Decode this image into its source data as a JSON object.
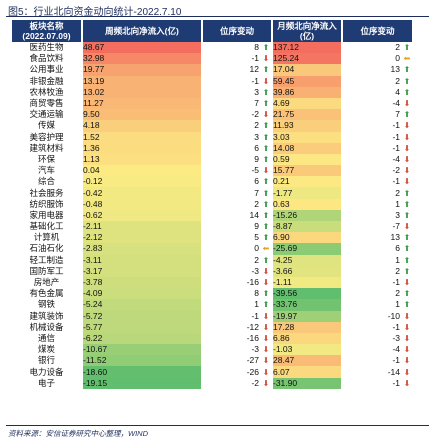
{
  "title": "图5：行业北向资金动向统计-2022.7.10",
  "headers": {
    "sector": "板块名称",
    "date": "(2022.07.09)",
    "weekly_flow": "周频北向净流入(亿)",
    "weekly_rank": "位序变动",
    "monthly_flow": "月频北向净流入(亿)",
    "monthly_rank": "位序变动"
  },
  "rows": [
    {
      "sector": "医药生物",
      "weekly": "48.67",
      "wrank": "8",
      "wdir": "up",
      "monthly": "137.12",
      "mrank": "2",
      "mdir": "up"
    },
    {
      "sector": "食品饮料",
      "weekly": "32.98",
      "wrank": "-1",
      "wdir": "down",
      "monthly": "125.24",
      "mrank": "0",
      "mdir": "flat"
    },
    {
      "sector": "公用事业",
      "weekly": "19.77",
      "wrank": "12",
      "wdir": "up",
      "monthly": "17.04",
      "mrank": "13",
      "mdir": "up"
    },
    {
      "sector": "非银金融",
      "weekly": "13.19",
      "wrank": "-1",
      "wdir": "down",
      "monthly": "59.45",
      "mrank": "2",
      "mdir": "up"
    },
    {
      "sector": "农林牧渔",
      "weekly": "13.02",
      "wrank": "3",
      "wdir": "up",
      "monthly": "39.86",
      "mrank": "4",
      "mdir": "up"
    },
    {
      "sector": "商贸零售",
      "weekly": "11.27",
      "wrank": "7",
      "wdir": "up",
      "monthly": "4.69",
      "mrank": "-4",
      "mdir": "down"
    },
    {
      "sector": "交通运输",
      "weekly": "9.50",
      "wrank": "-2",
      "wdir": "down",
      "monthly": "21.75",
      "mrank": "7",
      "mdir": "up"
    },
    {
      "sector": "传媒",
      "weekly": "4.18",
      "wrank": "2",
      "wdir": "up",
      "monthly": "11.93",
      "mrank": "-1",
      "mdir": "down"
    },
    {
      "sector": "美容护理",
      "weekly": "1.52",
      "wrank": "3",
      "wdir": "up",
      "monthly": "3.03",
      "mrank": "-1",
      "mdir": "down"
    },
    {
      "sector": "建筑材料",
      "weekly": "1.36",
      "wrank": "6",
      "wdir": "up",
      "monthly": "14.08",
      "mrank": "-1",
      "mdir": "down"
    },
    {
      "sector": "环保",
      "weekly": "1.13",
      "wrank": "9",
      "wdir": "up",
      "monthly": "0.59",
      "mrank": "-4",
      "mdir": "down"
    },
    {
      "sector": "汽车",
      "weekly": "0.04",
      "wrank": "-5",
      "wdir": "down",
      "monthly": "15.77",
      "mrank": "-2",
      "mdir": "down"
    },
    {
      "sector": "综合",
      "weekly": "-0.12",
      "wrank": "6",
      "wdir": "up",
      "monthly": "0.21",
      "mrank": "-1",
      "mdir": "down"
    },
    {
      "sector": "社会服务",
      "weekly": "-0.42",
      "wrank": "7",
      "wdir": "up",
      "monthly": "-1.77",
      "mrank": "2",
      "mdir": "up"
    },
    {
      "sector": "纺织服饰",
      "weekly": "-0.48",
      "wrank": "2",
      "wdir": "up",
      "monthly": "0.63",
      "mrank": "1",
      "mdir": "up"
    },
    {
      "sector": "家用电器",
      "weekly": "-0.62",
      "wrank": "14",
      "wdir": "up",
      "monthly": "-15.26",
      "mrank": "3",
      "mdir": "up"
    },
    {
      "sector": "基础化工",
      "weekly": "-2.11",
      "wrank": "9",
      "wdir": "up",
      "monthly": "-8.87",
      "mrank": "-7",
      "mdir": "down"
    },
    {
      "sector": "计算机",
      "weekly": "-2.12",
      "wrank": "5",
      "wdir": "up",
      "monthly": "6.90",
      "mrank": "13",
      "mdir": "up"
    },
    {
      "sector": "石油石化",
      "weekly": "-2.83",
      "wrank": "0",
      "wdir": "flat",
      "monthly": "-25.69",
      "mrank": "6",
      "mdir": "up"
    },
    {
      "sector": "轻工制造",
      "weekly": "-3.11",
      "wrank": "2",
      "wdir": "up",
      "monthly": "-4.25",
      "mrank": "1",
      "mdir": "up"
    },
    {
      "sector": "国防军工",
      "weekly": "-3.17",
      "wrank": "-3",
      "wdir": "down",
      "monthly": "-3.66",
      "mrank": "2",
      "mdir": "up"
    },
    {
      "sector": "房地产",
      "weekly": "-3.78",
      "wrank": "-16",
      "wdir": "down",
      "monthly": "-1.11",
      "mrank": "-1",
      "mdir": "down"
    },
    {
      "sector": "有色金属",
      "weekly": "-4.09",
      "wrank": "8",
      "wdir": "up",
      "monthly": "-39.56",
      "mrank": "2",
      "mdir": "up"
    },
    {
      "sector": "钢铁",
      "weekly": "-5.24",
      "wrank": "1",
      "wdir": "up",
      "monthly": "-33.76",
      "mrank": "1",
      "mdir": "up"
    },
    {
      "sector": "建筑装饰",
      "weekly": "-5.72",
      "wrank": "-1",
      "wdir": "down",
      "monthly": "-19.97",
      "mrank": "-10",
      "mdir": "down"
    },
    {
      "sector": "机械设备",
      "weekly": "-5.77",
      "wrank": "-12",
      "wdir": "down",
      "monthly": "17.28",
      "mrank": "-1",
      "mdir": "down"
    },
    {
      "sector": "通信",
      "weekly": "-6.22",
      "wrank": "-16",
      "wdir": "down",
      "monthly": "6.86",
      "mrank": "-3",
      "mdir": "down"
    },
    {
      "sector": "煤炭",
      "weekly": "-10.67",
      "wrank": "-3",
      "wdir": "down",
      "monthly": "-1.03",
      "mrank": "-4",
      "mdir": "down"
    },
    {
      "sector": "银行",
      "weekly": "-11.52",
      "wrank": "-27",
      "wdir": "down",
      "monthly": "28.47",
      "mrank": "-1",
      "mdir": "down"
    },
    {
      "sector": "电力设备",
      "weekly": "-18.60",
      "wrank": "-26",
      "wdir": "down",
      "monthly": "6.07",
      "mrank": "-14",
      "mdir": "down"
    },
    {
      "sector": "电子",
      "weekly": "-19.15",
      "wrank": "-2",
      "wdir": "down",
      "monthly": "-31.90",
      "mrank": "-1",
      "mdir": "down"
    }
  ],
  "source": "资料来源：安信证券研究中心整理，WIND",
  "colors": {
    "header_bg": "#1f3b73",
    "arrow_up": "#3c9c4a",
    "arrow_down": "#d0503c",
    "arrow_flat": "#e3a41a"
  }
}
